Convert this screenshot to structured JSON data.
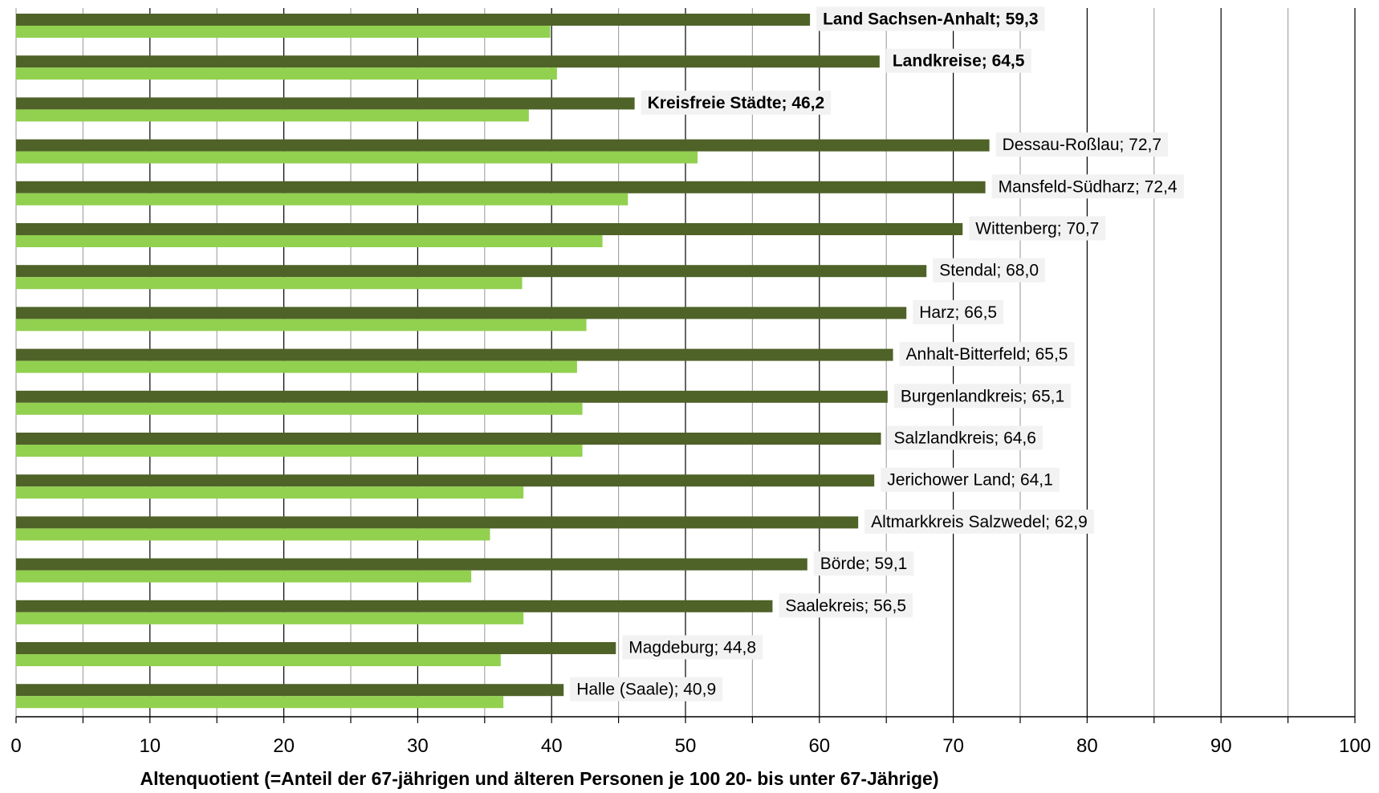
{
  "chart_data": {
    "type": "bar",
    "orientation": "horizontal",
    "xlabel": "Altenquotient (=Anteil der 67-jährigen und älteren Personen je 100 20- bis unter 67-Jährige)",
    "xlim": [
      0,
      100
    ],
    "x_ticks": [
      "0",
      "10",
      "20",
      "30",
      "40",
      "50",
      "60",
      "70",
      "80",
      "90",
      "100"
    ],
    "grid": true,
    "legend": "none",
    "categories": [
      "Land Sachsen-Anhalt",
      "Landkreise",
      "Kreisfreie Städte",
      "Dessau-Roßlau",
      "Mansfeld-Südharz",
      "Wittenberg",
      "Stendal",
      "Harz",
      "Anhalt-Bitterfeld",
      "Burgenlandkreis",
      "Salzlandkreis",
      "Jerichower Land",
      "Altmarkkreis Salzwedel",
      "Börde",
      "Saalekreis",
      "Magdeburg",
      "Halle (Saale)"
    ],
    "bold_categories": [
      "Land Sachsen-Anhalt",
      "Landkreise",
      "Kreisfreie Städte"
    ],
    "series": [
      {
        "color": "#4f6228",
        "values": [
          59.3,
          64.5,
          46.2,
          72.7,
          72.4,
          70.7,
          68.0,
          66.5,
          65.5,
          65.1,
          64.6,
          64.1,
          62.9,
          59.1,
          56.5,
          44.8,
          40.9
        ],
        "data_labels": [
          "Land Sachsen-Anhalt; 59,3",
          "Landkreise; 64,5",
          "Kreisfreie Städte; 46,2",
          "Dessau-Roßlau; 72,7",
          "Mansfeld-Südharz; 72,4",
          "Wittenberg; 70,7",
          "Stendal; 68,0",
          "Harz; 66,5",
          "Anhalt-Bitterfeld; 65,5",
          "Burgenlandkreis; 65,1",
          "Salzlandkreis; 64,6",
          "Jerichower Land; 64,1",
          "Altmarkkreis Salzwedel; 62,9",
          "Börde; 59,1",
          "Saalekreis; 56,5",
          "Magdeburg; 44,8",
          "Halle (Saale); 40,9"
        ]
      },
      {
        "color": "#92d050",
        "values": [
          39.9,
          40.4,
          38.3,
          50.9,
          45.7,
          43.8,
          37.8,
          42.6,
          41.9,
          42.3,
          42.3,
          37.9,
          35.4,
          34.0,
          37.9,
          36.2,
          36.4
        ]
      }
    ],
    "colors": {
      "grid_major": "#000000",
      "grid_minor": "#a6a6a6",
      "label_box": "#f2f2f2"
    }
  }
}
